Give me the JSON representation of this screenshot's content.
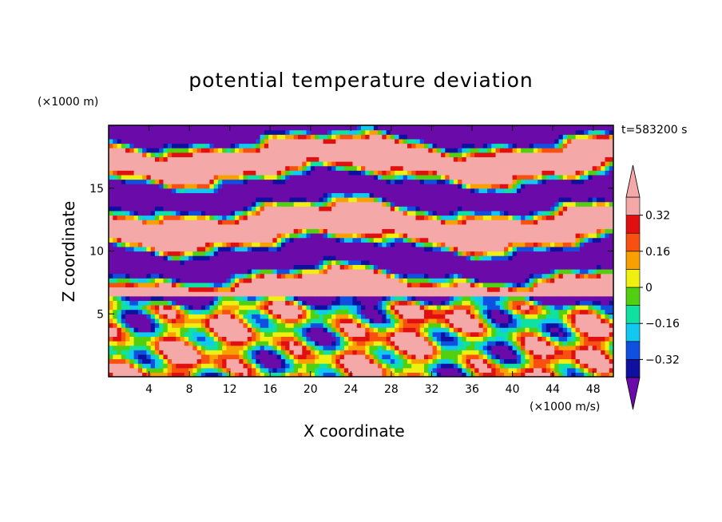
{
  "chart_data": {
    "type": "heatmap",
    "title": "potential temperature deviation",
    "xlabel": "X coordinate",
    "ylabel": "Z coordinate",
    "x_unit": "(×1000 m/s)",
    "y_unit": "(×1000 m)",
    "time_label": "t=583200 s",
    "xlim": [
      0,
      50
    ],
    "ylim": [
      0,
      20
    ],
    "x_ticks": [
      4,
      8,
      12,
      16,
      20,
      24,
      28,
      32,
      36,
      40,
      44,
      48
    ],
    "y_ticks": [
      5,
      10,
      15
    ],
    "colorbar": {
      "levels": [
        -0.4,
        -0.32,
        -0.24,
        -0.16,
        -0.08,
        0,
        0.08,
        0.16,
        0.24,
        0.32,
        0.4
      ],
      "labels": [
        "0.32",
        "0.16",
        "0",
        "−0.16",
        "−0.32"
      ],
      "label_values": [
        0.32,
        0.16,
        0,
        -0.16,
        -0.32
      ],
      "colors": [
        "#6a0aa8",
        "#1010a0",
        "#1050e0",
        "#10c8f0",
        "#10e0a0",
        "#50d010",
        "#f0f010",
        "#f8a000",
        "#f85010",
        "#e01010",
        "#f4a8a8"
      ],
      "extend": "both"
    }
  }
}
